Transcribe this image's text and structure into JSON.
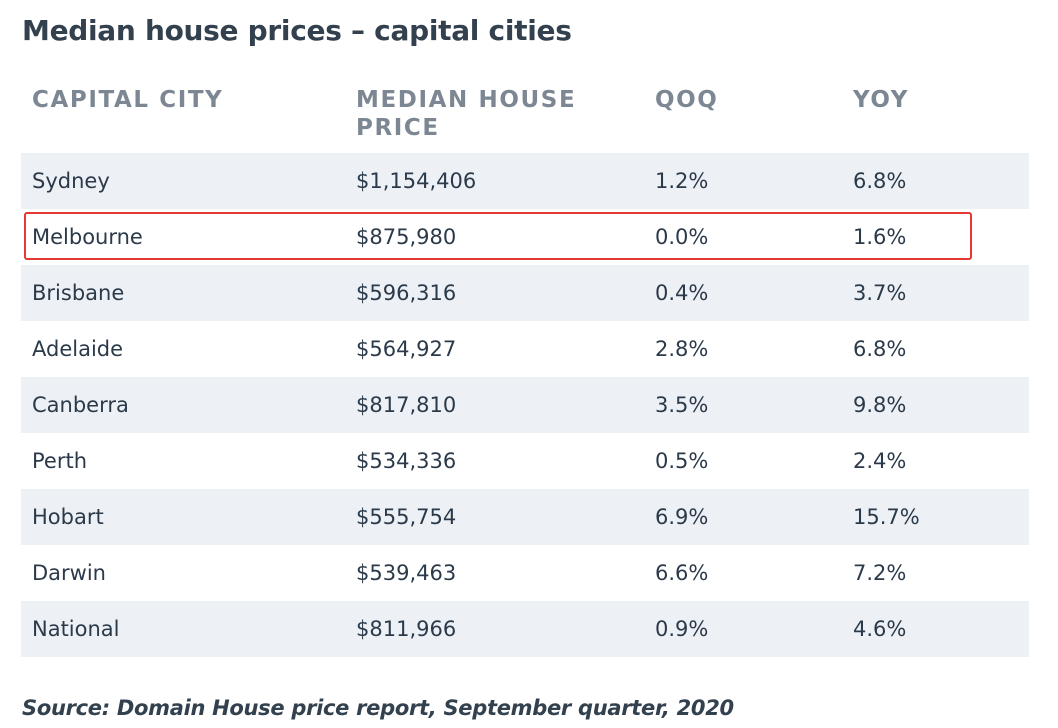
{
  "title": "Median house prices – capital cities",
  "table": {
    "headers": [
      "CAPITAL CITY",
      "MEDIAN HOUSE PRICE",
      "QOQ",
      "YOY"
    ],
    "rows": [
      [
        "Sydney",
        "$1,154,406",
        "1.2%",
        "6.8%"
      ],
      [
        "Melbourne",
        "$875,980",
        "0.0%",
        "1.6%"
      ],
      [
        "Brisbane",
        "$596,316",
        "0.4%",
        "3.7%"
      ],
      [
        "Adelaide",
        "$564,927",
        "2.8%",
        "6.8%"
      ],
      [
        "Canberra",
        "$817,810",
        "3.5%",
        "9.8%"
      ],
      [
        "Perth",
        "$534,336",
        "0.5%",
        "2.4%"
      ],
      [
        "Hobart",
        "$555,754",
        "6.9%",
        "15.7%"
      ],
      [
        "Darwin",
        "$539,463",
        "6.6%",
        "7.2%"
      ],
      [
        "National",
        "$811,966",
        "0.9%",
        "4.6%"
      ]
    ],
    "highlighted_row": "Melbourne"
  },
  "source": "Source: Domain House price report, September quarter, 2020",
  "colors": {
    "row_shade": "#edf0f4",
    "header_text": "#7d8793",
    "highlight_border": "#e53935",
    "title_text": "#33414f"
  }
}
